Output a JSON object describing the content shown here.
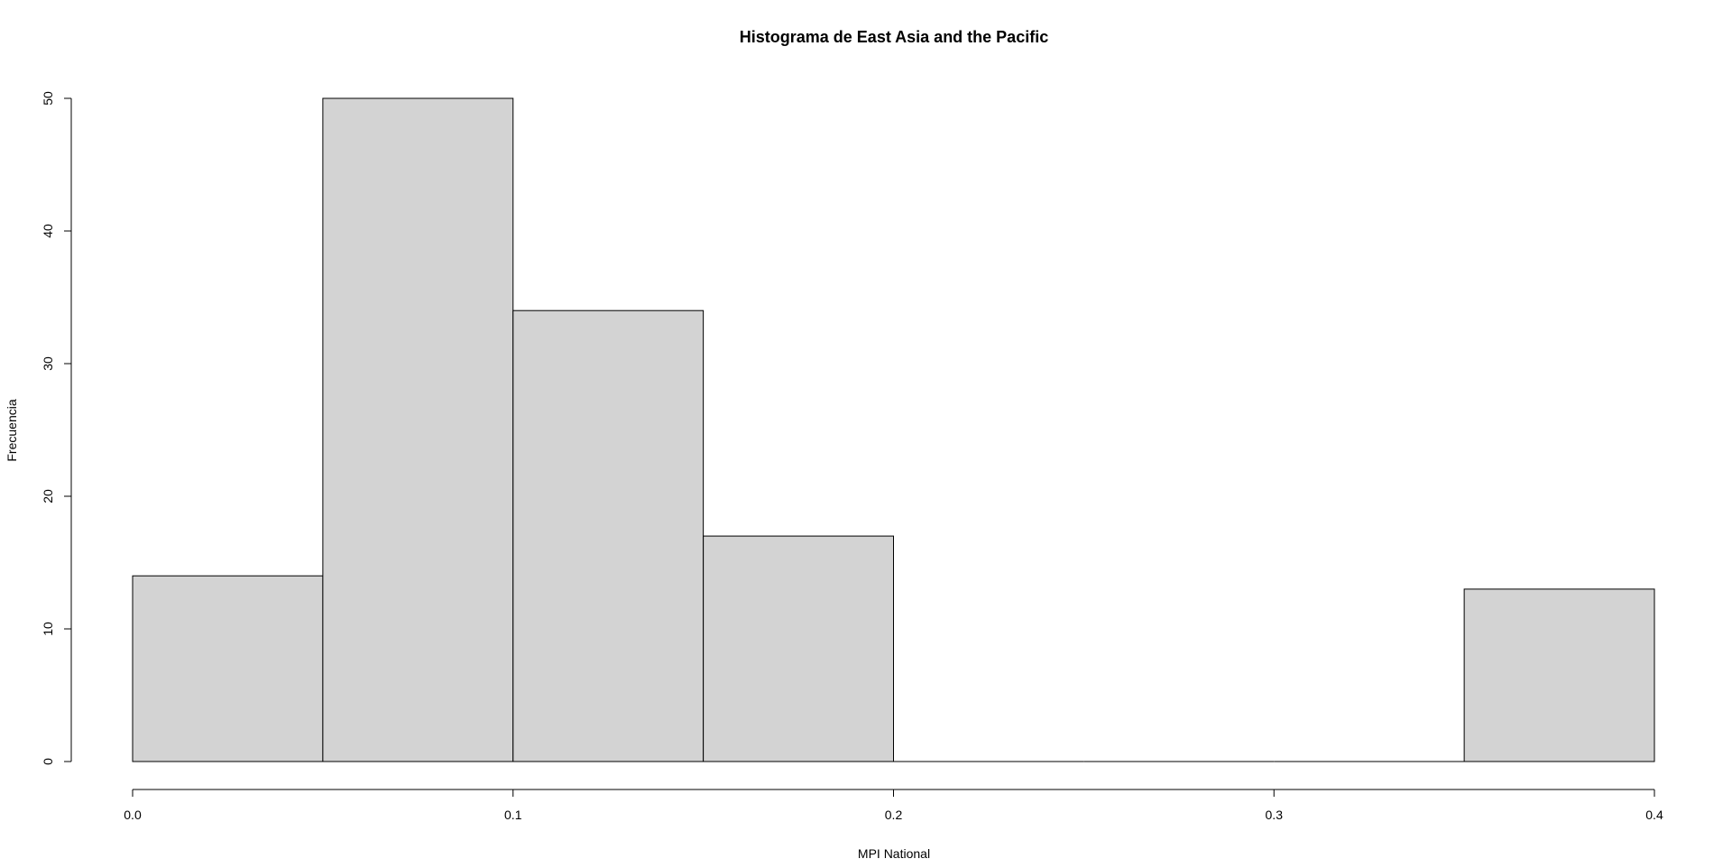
{
  "chart_data": {
    "type": "bar",
    "title": "Histograma de East Asia and the Pacific",
    "xlabel": "MPI National",
    "ylabel": "Frecuencia",
    "bin_edges": [
      0.0,
      0.05,
      0.1,
      0.15,
      0.2,
      0.25,
      0.3,
      0.35,
      0.4
    ],
    "values": [
      14,
      50,
      34,
      17,
      0,
      0,
      0,
      13
    ],
    "xlim": [
      0.0,
      0.4
    ],
    "ylim": [
      0,
      50
    ],
    "x_ticks": [
      0.0,
      0.1,
      0.2,
      0.3,
      0.4
    ],
    "x_tick_labels": [
      "0.0",
      "0.1",
      "0.2",
      "0.3",
      "0.4"
    ],
    "y_ticks": [
      0,
      10,
      20,
      30,
      40,
      50
    ],
    "y_tick_labels": [
      "0",
      "10",
      "20",
      "30",
      "40",
      "50"
    ],
    "grid": false,
    "legend": "none",
    "colors": {
      "bar_fill": "#d3d3d3",
      "bar_stroke": "#000000",
      "axis": "#000000"
    }
  }
}
